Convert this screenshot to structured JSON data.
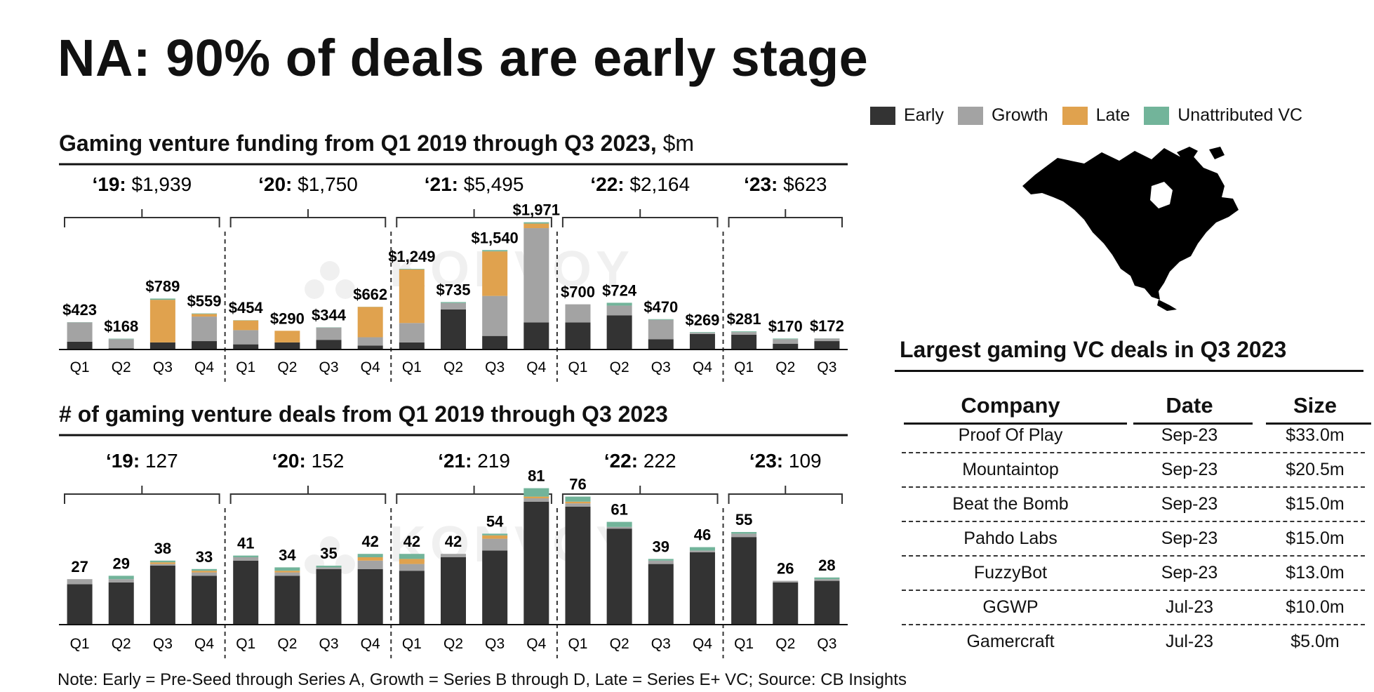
{
  "title": "NA: 90% of deals are early stage",
  "colors": {
    "Early": "#333333",
    "Growth": "#a3a3a3",
    "Late": "#e0a24e",
    "Unattributed VC": "#72b49a"
  },
  "legend": [
    "Early",
    "Growth",
    "Late",
    "Unattributed VC"
  ],
  "watermark": "KONVOY",
  "chart_data": [
    {
      "type": "bar",
      "stacked": true,
      "title_bold": "Gaming venture funding from Q1 2019 through Q3 2023,",
      "title_unit": "$m",
      "year_labels": [
        {
          "year": "‘19:",
          "total": "$1,939"
        },
        {
          "year": "‘20:",
          "total": "$1,750"
        },
        {
          "year": "‘21:",
          "total": "$5,495"
        },
        {
          "year": "‘22:",
          "total": "$2,164"
        },
        {
          "year": "‘23:",
          "total": "$623"
        }
      ],
      "categories": [
        "Q1",
        "Q2",
        "Q3",
        "Q4",
        "Q1",
        "Q2",
        "Q3",
        "Q4",
        "Q1",
        "Q2",
        "Q3",
        "Q4",
        "Q1",
        "Q2",
        "Q3",
        "Q4",
        "Q1",
        "Q2",
        "Q3"
      ],
      "value_labels": [
        "$423",
        "$168",
        "$789",
        "$559",
        "$454",
        "$290",
        "$344",
        "$662",
        "$1,249",
        "$735",
        "$1,540",
        "$1,971",
        "$700",
        "$724",
        "$470",
        "$269",
        "$281",
        "$170",
        "$172"
      ],
      "series": [
        {
          "name": "Early",
          "values": [
            120,
            20,
            110,
            130,
            80,
            110,
            150,
            60,
            110,
            620,
            210,
            420,
            420,
            530,
            160,
            240,
            230,
            90,
            130
          ]
        },
        {
          "name": "Growth",
          "values": [
            300,
            140,
            0,
            380,
            220,
            0,
            190,
            130,
            300,
            100,
            620,
            1460,
            280,
            150,
            300,
            20,
            40,
            70,
            40
          ]
        },
        {
          "name": "Late",
          "values": [
            0,
            0,
            660,
            40,
            150,
            180,
            0,
            470,
            830,
            0,
            690,
            70,
            0,
            0,
            0,
            0,
            0,
            0,
            0
          ]
        },
        {
          "name": "Unattributed VC",
          "values": [
            3,
            8,
            19,
            9,
            4,
            0,
            4,
            2,
            9,
            15,
            20,
            21,
            0,
            44,
            10,
            9,
            11,
            10,
            2
          ]
        }
      ],
      "ylim": [
        0,
        2000
      ]
    },
    {
      "type": "bar",
      "stacked": true,
      "title_bold": "# of gaming venture deals from Q1 2019 through Q3 2023",
      "year_labels": [
        {
          "year": "‘19:",
          "total": "127"
        },
        {
          "year": "‘20:",
          "total": "152"
        },
        {
          "year": "‘21:",
          "total": "219"
        },
        {
          "year": "‘22:",
          "total": "222"
        },
        {
          "year": "‘23:",
          "total": "109"
        }
      ],
      "categories": [
        "Q1",
        "Q2",
        "Q3",
        "Q4",
        "Q1",
        "Q2",
        "Q3",
        "Q4",
        "Q1",
        "Q2",
        "Q3",
        "Q4",
        "Q1",
        "Q2",
        "Q3",
        "Q4",
        "Q1",
        "Q2",
        "Q3"
      ],
      "value_labels": [
        "27",
        "29",
        "38",
        "33",
        "41",
        "34",
        "35",
        "42",
        "42",
        "42",
        "54",
        "81",
        "76",
        "61",
        "39",
        "46",
        "55",
        "26",
        "28"
      ],
      "series": [
        {
          "name": "Early",
          "values": [
            24,
            25,
            35,
            29,
            38,
            29,
            33,
            33,
            32,
            40,
            44,
            73,
            70,
            57,
            36,
            43,
            52,
            25,
            26
          ]
        },
        {
          "name": "Growth",
          "values": [
            3,
            2,
            1,
            2,
            2,
            2,
            1,
            5,
            4,
            2,
            7,
            2,
            2,
            1,
            2,
            1,
            2,
            1,
            1
          ]
        },
        {
          "name": "Late",
          "values": [
            0,
            0,
            1,
            1,
            0,
            1,
            0,
            2,
            3,
            0,
            2,
            1,
            1,
            0,
            0,
            0,
            0,
            0,
            0
          ]
        },
        {
          "name": "Unattributed VC",
          "values": [
            0,
            2,
            1,
            1,
            1,
            2,
            1,
            2,
            3,
            0,
            1,
            5,
            3,
            3,
            1,
            2,
            1,
            0,
            1
          ]
        }
      ],
      "ylim": [
        0,
        85
      ]
    }
  ],
  "deals_table": {
    "title": "Largest gaming VC deals in Q3 2023",
    "columns": [
      "Company",
      "Date",
      "Size"
    ],
    "rows": [
      [
        "Proof Of Play",
        "Sep-23",
        "$33.0m"
      ],
      [
        "Mountaintop",
        "Sep-23",
        "$20.5m"
      ],
      [
        "Beat the Bomb",
        "Sep-23",
        "$15.0m"
      ],
      [
        "Pahdo Labs",
        "Sep-23",
        "$15.0m"
      ],
      [
        "FuzzyBot",
        "Sep-23",
        "$13.0m"
      ],
      [
        "GGWP",
        "Jul-23",
        "$10.0m"
      ],
      [
        "Gamercraft",
        "Jul-23",
        "$5.0m"
      ]
    ]
  },
  "note": "Note: Early = Pre-Seed through Series A, Growth = Series B through D, Late = Series E+ VC; Source: CB Insights"
}
